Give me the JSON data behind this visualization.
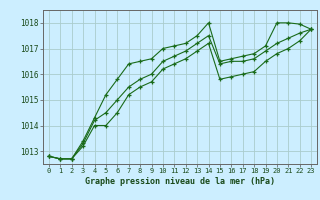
{
  "title": "Graphe pression niveau de la mer (hPa)",
  "bg_color": "#cceeff",
  "grid_color": "#aacccc",
  "line_color": "#1a6b1a",
  "marker_color": "#1a6b1a",
  "x_ticks": [
    0,
    1,
    2,
    3,
    4,
    5,
    6,
    7,
    8,
    9,
    10,
    11,
    12,
    13,
    14,
    15,
    16,
    17,
    18,
    19,
    20,
    21,
    22,
    23
  ],
  "y_ticks": [
    1013,
    1014,
    1015,
    1016,
    1017,
    1018
  ],
  "ylim": [
    1012.5,
    1018.5
  ],
  "xlim": [
    -0.5,
    23.5
  ],
  "series1": [
    1012.8,
    1012.7,
    1012.7,
    1013.4,
    1014.3,
    1015.2,
    1015.8,
    1016.4,
    1016.5,
    1016.6,
    1017.0,
    1017.1,
    1017.2,
    1017.5,
    1018.0,
    1016.5,
    1016.6,
    1016.7,
    1016.8,
    1017.1,
    1018.0,
    1018.0,
    1017.95,
    1017.75
  ],
  "series2": [
    1012.8,
    1012.7,
    1012.7,
    1013.3,
    1014.2,
    1014.5,
    1015.0,
    1015.5,
    1015.8,
    1016.0,
    1016.5,
    1016.7,
    1016.9,
    1017.2,
    1017.5,
    1016.4,
    1016.5,
    1016.5,
    1016.6,
    1016.9,
    1017.2,
    1017.4,
    1017.6,
    1017.75
  ],
  "series3": [
    1012.8,
    1012.7,
    1012.7,
    1013.2,
    1014.0,
    1014.0,
    1014.5,
    1015.2,
    1015.5,
    1015.7,
    1016.2,
    1016.4,
    1016.6,
    1016.9,
    1017.2,
    1015.8,
    1015.9,
    1016.0,
    1016.1,
    1016.5,
    1016.8,
    1017.0,
    1017.3,
    1017.75
  ],
  "xlabel_fontsize": 6.0,
  "ytick_fontsize": 5.5,
  "xtick_fontsize": 5.0
}
